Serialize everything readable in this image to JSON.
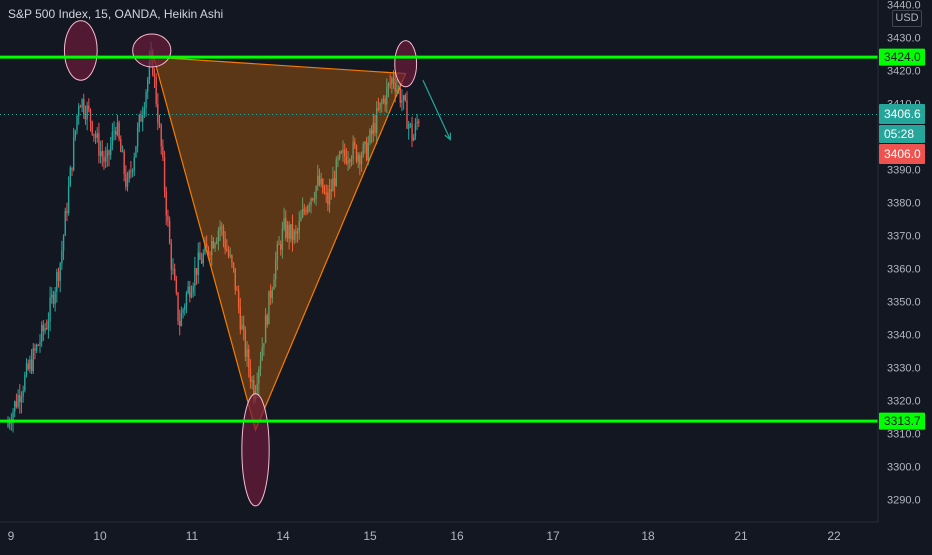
{
  "chart": {
    "title": "S&P 500 Index, 15, OANDA, Heikin Ashi",
    "currency": "USD"
  },
  "chart_data": {
    "type": "candlestick",
    "instrument": "S&P 500 Index",
    "timeframe": "15",
    "source": "OANDA",
    "candle_type": "Heikin Ashi",
    "ylim": [
      3283,
      3442
    ],
    "y_ticks": [
      "3440.0",
      "3430.0",
      "3420.0",
      "3410.0",
      "3390.0",
      "3380.0",
      "3370.0",
      "3360.0",
      "3350.0",
      "3340.0",
      "3330.0",
      "3320.0",
      "3310.0",
      "3300.0",
      "3290.0"
    ],
    "x_ticks": [
      "9",
      "10",
      "11",
      "14",
      "15",
      "16",
      "17",
      "18",
      "21",
      "22"
    ],
    "price_labels": {
      "resistance": "3424.0",
      "support": "3313.7",
      "last": "3406.6",
      "countdown": "05:28",
      "bid": "3406.0"
    },
    "levels": {
      "resistance": 3424.0,
      "support": 3313.7,
      "last": 3406.6,
      "bid": 3406.0
    },
    "colors": {
      "background": "#131722",
      "up": "#26a69a",
      "down": "#ef5350",
      "level_line": "#00ff00",
      "triangle": "#f57c00",
      "ellipse": "#f8bbd0",
      "arrow": "#26a69a"
    },
    "price_path": [
      [
        0,
        3312
      ],
      [
        0.45,
        3344
      ],
      [
        0.6,
        3363
      ],
      [
        0.8,
        3412
      ],
      [
        0.92,
        3406
      ],
      [
        1.0,
        3398
      ],
      [
        1.1,
        3391
      ],
      [
        1.2,
        3404
      ],
      [
        1.33,
        3384
      ],
      [
        1.45,
        3402
      ],
      [
        1.6,
        3424
      ],
      [
        1.7,
        3397
      ],
      [
        1.8,
        3365
      ],
      [
        1.9,
        3343
      ],
      [
        1.98,
        3352
      ],
      [
        2.1,
        3361
      ],
      [
        2.2,
        3365
      ],
      [
        2.35,
        3373
      ],
      [
        2.5,
        3358
      ],
      [
        2.62,
        3336
      ],
      [
        2.72,
        3323
      ],
      [
        2.82,
        3338
      ],
      [
        2.95,
        3361
      ],
      [
        3.05,
        3372
      ],
      [
        3.18,
        3369
      ],
      [
        3.3,
        3380
      ],
      [
        3.43,
        3386
      ],
      [
        3.53,
        3380
      ],
      [
        3.65,
        3392
      ],
      [
        3.78,
        3396
      ],
      [
        3.85,
        3395
      ],
      [
        3.95,
        3395
      ],
      [
        4.1,
        3408
      ],
      [
        4.25,
        3418
      ],
      [
        4.35,
        3411
      ],
      [
        4.47,
        3399
      ],
      [
        4.53,
        3406
      ]
    ],
    "annotations": [
      {
        "type": "triangle",
        "points": [
          [
            1.6,
            3424
          ],
          [
            2.72,
            3311
          ],
          [
            4.37,
            3419
          ]
        ]
      },
      {
        "type": "horizontal_line",
        "price": 3424.0
      },
      {
        "type": "horizontal_line",
        "price": 3313.7
      },
      {
        "type": "ellipse",
        "center": [
          0.8,
          3426
        ],
        "rx_days": 0.18,
        "ry_price": 9
      },
      {
        "type": "ellipse",
        "center": [
          1.58,
          3426
        ],
        "rx_days": 0.21,
        "ry_price": 5
      },
      {
        "type": "ellipse",
        "center": [
          2.72,
          3305
        ],
        "rx_days": 0.15,
        "ry_price": 17
      },
      {
        "type": "ellipse",
        "center": [
          4.37,
          3422
        ],
        "rx_days": 0.12,
        "ry_price": 7
      },
      {
        "type": "arrow",
        "from": [
          4.56,
          3417
        ],
        "to": [
          4.86,
          3399
        ]
      }
    ]
  }
}
